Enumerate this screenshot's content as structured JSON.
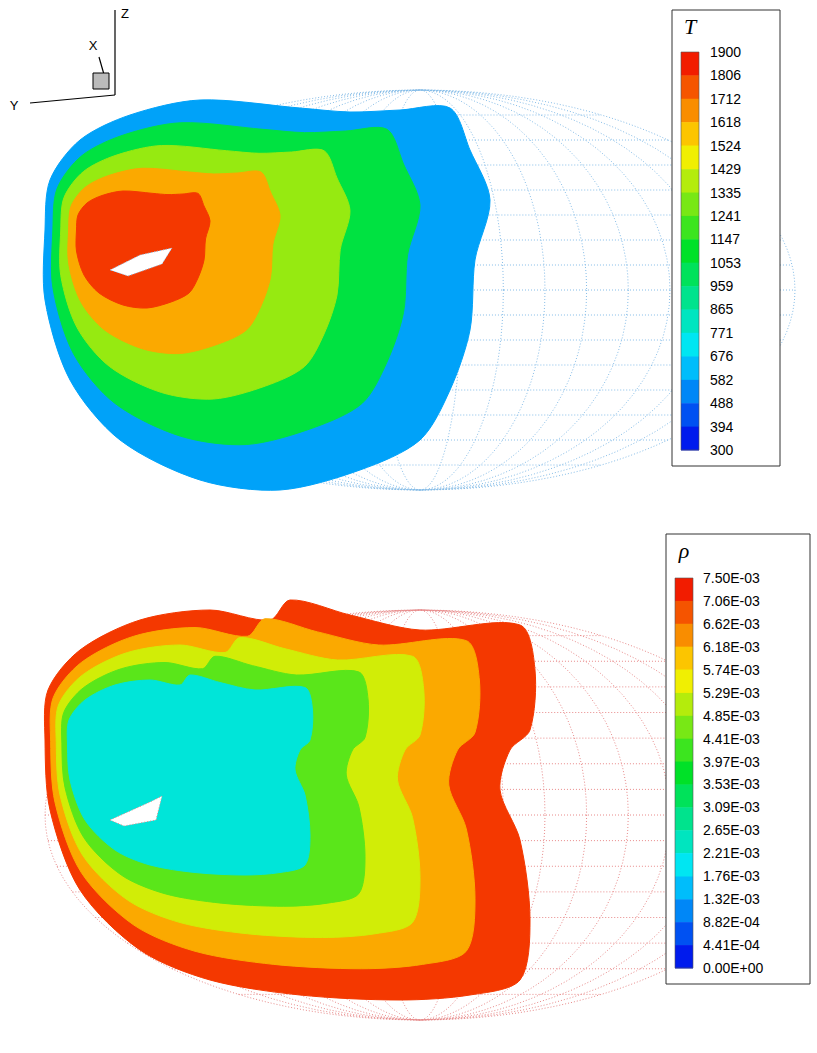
{
  "chart_data": [
    {
      "type": "contour",
      "axis_labels": [
        "X",
        "Y",
        "Z"
      ],
      "colorbar": {
        "title": "T",
        "range": [
          300,
          1900
        ],
        "ticks": [
          1900,
          1806,
          1712,
          1618,
          1524,
          1429,
          1335,
          1241,
          1147,
          1053,
          959,
          865,
          771,
          676,
          582,
          488,
          394,
          300
        ]
      },
      "bands": [
        582,
        1053,
        1335,
        1618,
        1806
      ]
    },
    {
      "type": "contour",
      "colorbar": {
        "title": "ρ",
        "range": [
          0,
          0.0075
        ],
        "ticks": [
          {
            "value": 0.0075,
            "label": "7.50E-03"
          },
          {
            "value": 0.00706,
            "label": "7.06E-03"
          },
          {
            "value": 0.00662,
            "label": "6.62E-03"
          },
          {
            "value": 0.00618,
            "label": "6.18E-03"
          },
          {
            "value": 0.00574,
            "label": "5.74E-03"
          },
          {
            "value": 0.00529,
            "label": "5.29E-03"
          },
          {
            "value": 0.00485,
            "label": "4.85E-03"
          },
          {
            "value": 0.00441,
            "label": "4.41E-03"
          },
          {
            "value": 0.00397,
            "label": "3.97E-03"
          },
          {
            "value": 0.00353,
            "label": "3.53E-03"
          },
          {
            "value": 0.00309,
            "label": "3.09E-03"
          },
          {
            "value": 0.00265,
            "label": "2.65E-03"
          },
          {
            "value": 0.00221,
            "label": "2.21E-03"
          },
          {
            "value": 0.00176,
            "label": "1.76E-03"
          },
          {
            "value": 0.00132,
            "label": "1.32E-03"
          },
          {
            "value": 0.000882,
            "label": "8.82E-04"
          },
          {
            "value": 0.000441,
            "label": "4.41E-04"
          },
          {
            "value": 0,
            "label": "0.00E+00"
          }
        ]
      },
      "bands": [
        0.00706,
        0.00618,
        0.00529,
        0.00441,
        0.00221
      ]
    }
  ]
}
